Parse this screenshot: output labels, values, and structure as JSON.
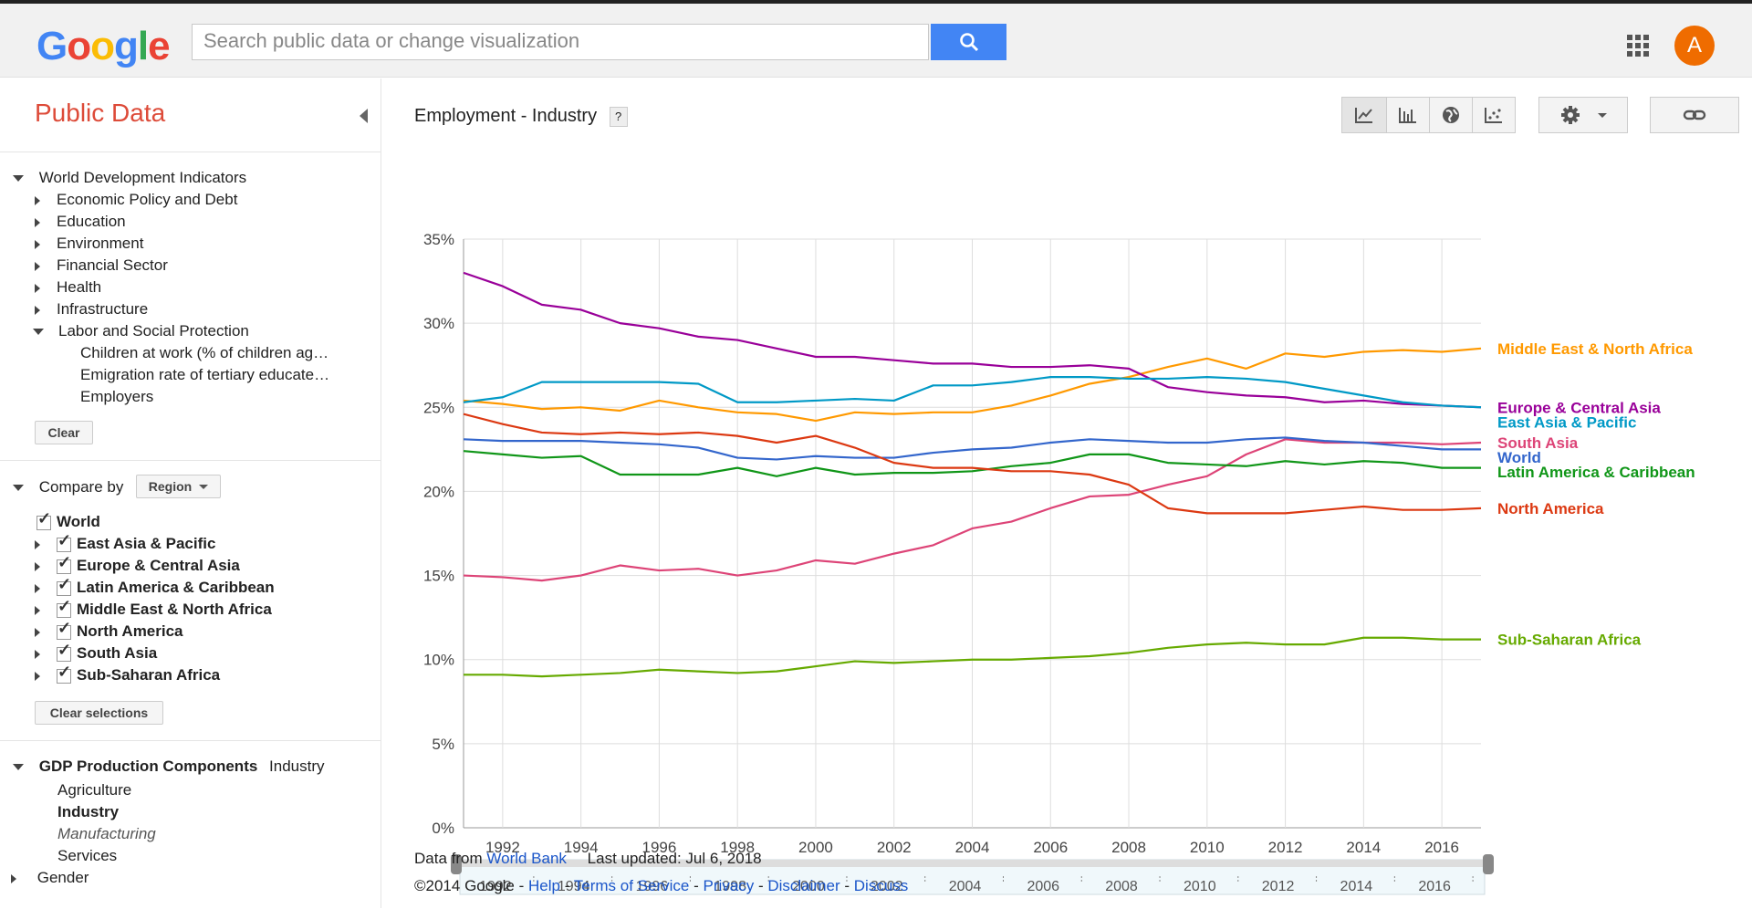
{
  "header": {
    "logo": "Google",
    "search_placeholder": "Search public data or change visualization",
    "avatar_letter": "A"
  },
  "sidebar": {
    "title": "Public Data",
    "tree": {
      "root": "World Development Indicators",
      "items": [
        "Economic Policy and Debt",
        "Education",
        "Environment",
        "Financial Sector",
        "Health",
        "Infrastructure",
        "Labor and Social Protection"
      ],
      "subitems": [
        "Children at work (% of children ag…",
        "Emigration rate of tertiary educate…",
        "Employers"
      ]
    },
    "clear_label": "Clear",
    "compare_by_label": "Compare by",
    "compare_by_value": "Region",
    "regions": [
      "World",
      "East Asia & Pacific",
      "Europe & Central Asia",
      "Latin America & Caribbean",
      "Middle East & North Africa",
      "North America",
      "South Asia",
      "Sub-Saharan Africa"
    ],
    "clear_selections_label": "Clear selections",
    "gdp": {
      "label": "GDP Production Components",
      "value": "Industry",
      "items": [
        "Agriculture",
        "Industry",
        "Manufacturing",
        "Services"
      ]
    },
    "gender_label": "Gender"
  },
  "main": {
    "title": "Employment - Industry",
    "help_label": "?"
  },
  "footer": {
    "data_from": "Data from",
    "source_link": "World Bank",
    "last_updated": "Last updated: Jul 6, 2018",
    "copyright": "©2014 Google",
    "links": [
      "Help",
      "Terms of Service",
      "Privacy",
      "Disclaimer",
      "Discuss"
    ],
    "separator": " - "
  },
  "chart_data": {
    "type": "line",
    "title": "Employment - Industry",
    "y_ticks": [
      "35%",
      "30%",
      "25%",
      "20%",
      "15%",
      "10%",
      "5%",
      "0%"
    ],
    "x_ticks": [
      "1992",
      "1994",
      "1996",
      "1998",
      "2000",
      "2002",
      "2004",
      "2006",
      "2008",
      "2010",
      "2012",
      "2014",
      "2016"
    ],
    "ylim": [
      0,
      35
    ],
    "xlim": [
      1991,
      2017
    ],
    "x": [
      1991,
      1992,
      1993,
      1994,
      1995,
      1996,
      1997,
      1998,
      1999,
      2000,
      2001,
      2002,
      2003,
      2004,
      2005,
      2006,
      2007,
      2008,
      2009,
      2010,
      2011,
      2012,
      2013,
      2014,
      2015,
      2016,
      2017
    ],
    "grid": true,
    "legend": "right, inline labels",
    "series": [
      {
        "name": "Middle East & North Africa",
        "color": "#ff9900",
        "values": [
          25.4,
          25.2,
          24.9,
          25.0,
          24.8,
          25.4,
          25.0,
          24.7,
          24.6,
          24.2,
          24.7,
          24.6,
          24.7,
          24.7,
          25.1,
          25.7,
          26.4,
          26.8,
          27.4,
          27.9,
          27.3,
          28.2,
          28.0,
          28.3,
          28.4,
          28.3,
          28.5
        ]
      },
      {
        "name": "Europe & Central Asia",
        "color": "#990099",
        "values": [
          33.0,
          32.2,
          31.1,
          30.8,
          30.0,
          29.7,
          29.2,
          29.0,
          28.5,
          28.0,
          28.0,
          27.8,
          27.6,
          27.6,
          27.4,
          27.4,
          27.5,
          27.3,
          26.2,
          25.9,
          25.7,
          25.6,
          25.3,
          25.4,
          25.2,
          25.1,
          25.0
        ]
      },
      {
        "name": "East Asia & Pacific",
        "color": "#0099c6",
        "values": [
          25.3,
          25.6,
          26.5,
          26.5,
          26.5,
          26.5,
          26.4,
          25.3,
          25.3,
          25.4,
          25.5,
          25.4,
          26.3,
          26.3,
          26.5,
          26.8,
          26.8,
          26.7,
          26.7,
          26.8,
          26.7,
          26.5,
          26.1,
          25.7,
          25.3,
          25.1,
          25.0
        ]
      },
      {
        "name": "South Asia",
        "color": "#dd4477",
        "values": [
          15.0,
          14.9,
          14.7,
          15.0,
          15.6,
          15.3,
          15.4,
          15.0,
          15.3,
          15.9,
          15.7,
          16.3,
          16.8,
          17.8,
          18.2,
          19.0,
          19.7,
          19.8,
          20.4,
          20.9,
          22.2,
          23.1,
          22.9,
          22.9,
          22.9,
          22.8,
          22.9
        ]
      },
      {
        "name": "World",
        "color": "#3366cc",
        "values": [
          23.1,
          23.0,
          23.0,
          23.0,
          22.9,
          22.8,
          22.6,
          22.0,
          21.9,
          22.1,
          22.0,
          22.0,
          22.3,
          22.5,
          22.6,
          22.9,
          23.1,
          23.0,
          22.9,
          22.9,
          23.1,
          23.2,
          23.0,
          22.9,
          22.7,
          22.5,
          22.5
        ]
      },
      {
        "name": "Latin America & Caribbean",
        "color": "#109618",
        "values": [
          22.4,
          22.2,
          22.0,
          22.1,
          21.0,
          21.0,
          21.0,
          21.4,
          20.9,
          21.4,
          21.0,
          21.1,
          21.1,
          21.2,
          21.5,
          21.7,
          22.2,
          22.2,
          21.7,
          21.6,
          21.5,
          21.8,
          21.6,
          21.8,
          21.7,
          21.4,
          21.4
        ]
      },
      {
        "name": "North America",
        "color": "#dc3912",
        "values": [
          24.6,
          24.0,
          23.5,
          23.4,
          23.5,
          23.4,
          23.5,
          23.3,
          22.9,
          23.3,
          22.6,
          21.7,
          21.4,
          21.4,
          21.2,
          21.2,
          21.0,
          20.4,
          19.0,
          18.7,
          18.7,
          18.7,
          18.9,
          19.1,
          18.9,
          18.9,
          19.0
        ]
      },
      {
        "name": "Sub-Saharan Africa",
        "color": "#66aa00",
        "values": [
          9.1,
          9.1,
          9.0,
          9.1,
          9.2,
          9.4,
          9.3,
          9.2,
          9.3,
          9.6,
          9.9,
          9.8,
          9.9,
          10.0,
          10.0,
          10.1,
          10.2,
          10.4,
          10.7,
          10.9,
          11.0,
          10.9,
          10.9,
          11.3,
          11.3,
          11.2,
          11.2
        ]
      }
    ],
    "label_positions_order": [
      "Middle East & North Africa",
      "Europe & Central Asia",
      "East Asia & Pacific",
      "South Asia",
      "World",
      "Latin America & Caribbean",
      "North America",
      "Sub-Saharan Africa"
    ]
  }
}
